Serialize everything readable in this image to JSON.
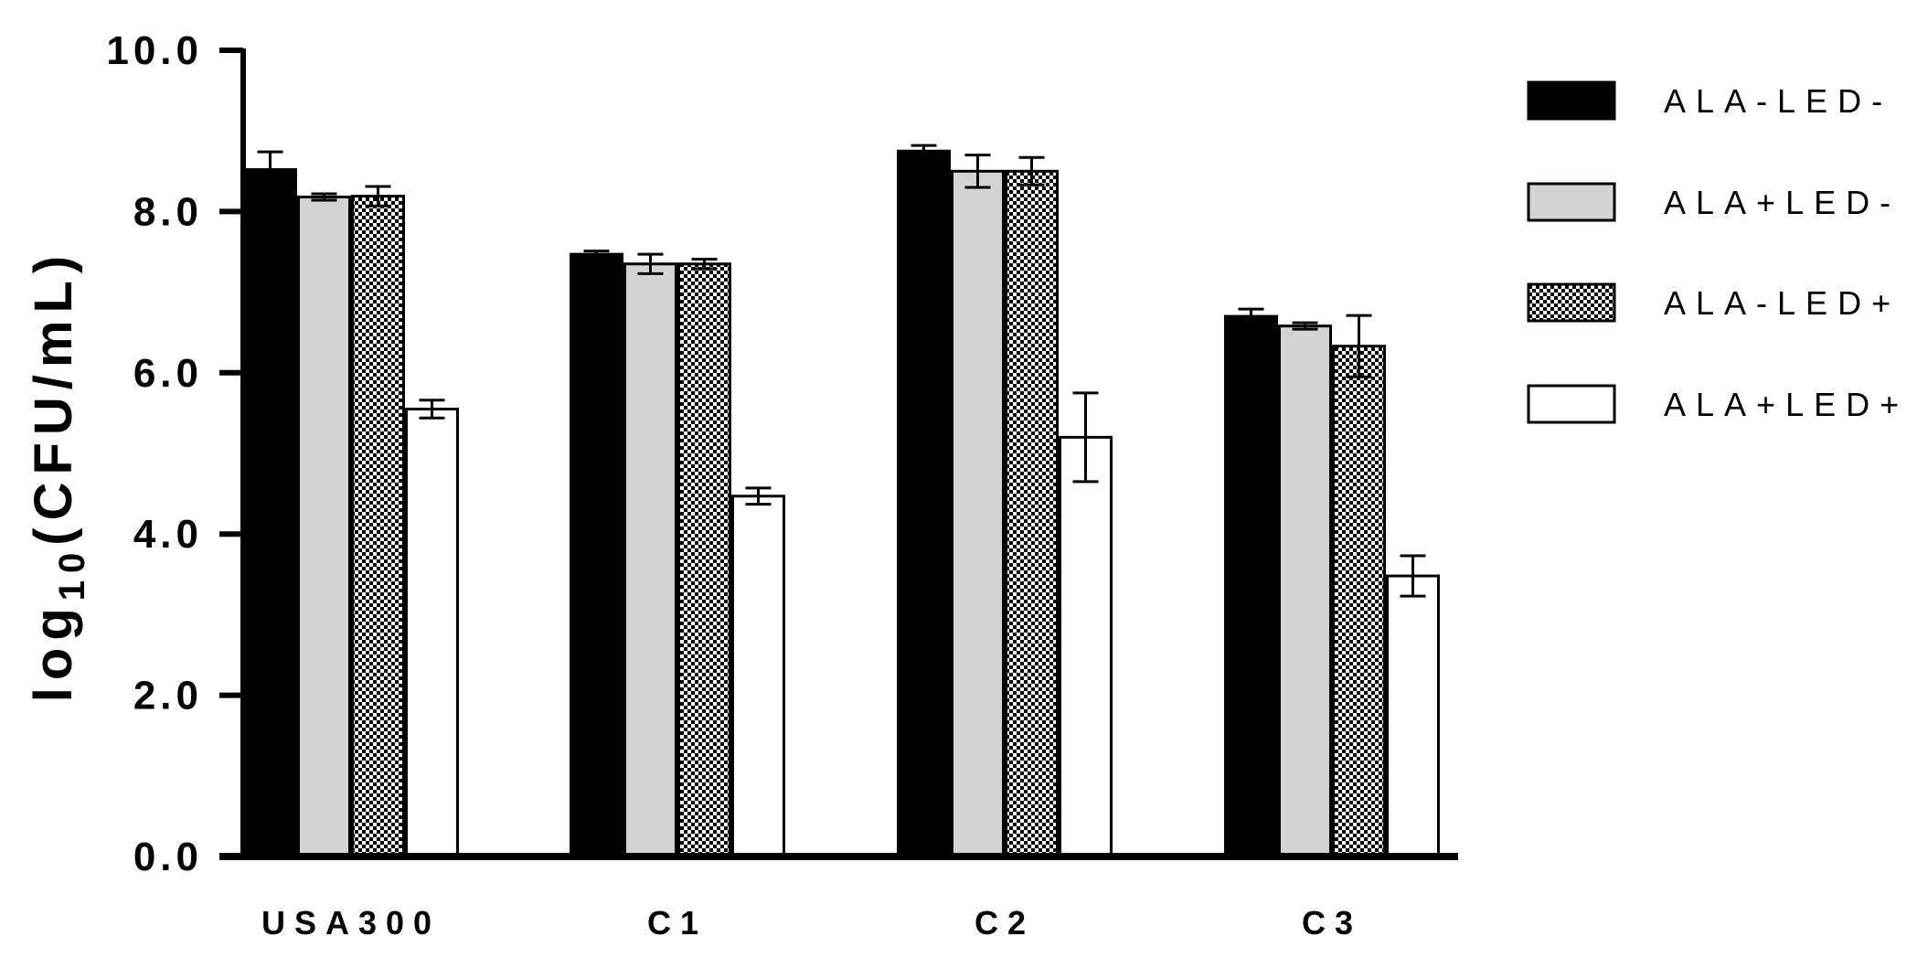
{
  "chart_data": {
    "type": "bar",
    "title": "",
    "xlabel": "",
    "ylabel": {
      "prefix": "log",
      "subscript": "10",
      "suffix": "(CFU/mL)"
    },
    "ylim": [
      0,
      10
    ],
    "yticks": [
      "0.0",
      "2.0",
      "4.0",
      "6.0",
      "8.0",
      "10.0"
    ],
    "categories": [
      "USA300",
      "C1",
      "C2",
      "C3"
    ],
    "series": [
      {
        "name": "ALA-LED-",
        "fill": "solid-black",
        "color": "#000000",
        "values": [
          8.52,
          7.47,
          8.75,
          6.7
        ],
        "errors": [
          0.22,
          0.04,
          0.07,
          0.09
        ]
      },
      {
        "name": "ALA+LED-",
        "fill": "solid-gray",
        "color": "#d3d3d3",
        "values": [
          8.18,
          7.35,
          8.5,
          6.58
        ],
        "errors": [
          0.04,
          0.12,
          0.2,
          0.04
        ]
      },
      {
        "name": "ALA-LED+",
        "fill": "checkerboard",
        "color": "#000000",
        "values": [
          8.19,
          7.35,
          8.5,
          6.33
        ],
        "errors": [
          0.12,
          0.06,
          0.17,
          0.38
        ]
      },
      {
        "name": "ALA+LED+",
        "fill": "solid-white",
        "color": "#ffffff",
        "values": [
          5.55,
          4.47,
          5.2,
          3.48
        ],
        "errors": [
          0.11,
          0.1,
          0.55,
          0.25
        ]
      }
    ],
    "legend_position": "right",
    "grid": false
  }
}
